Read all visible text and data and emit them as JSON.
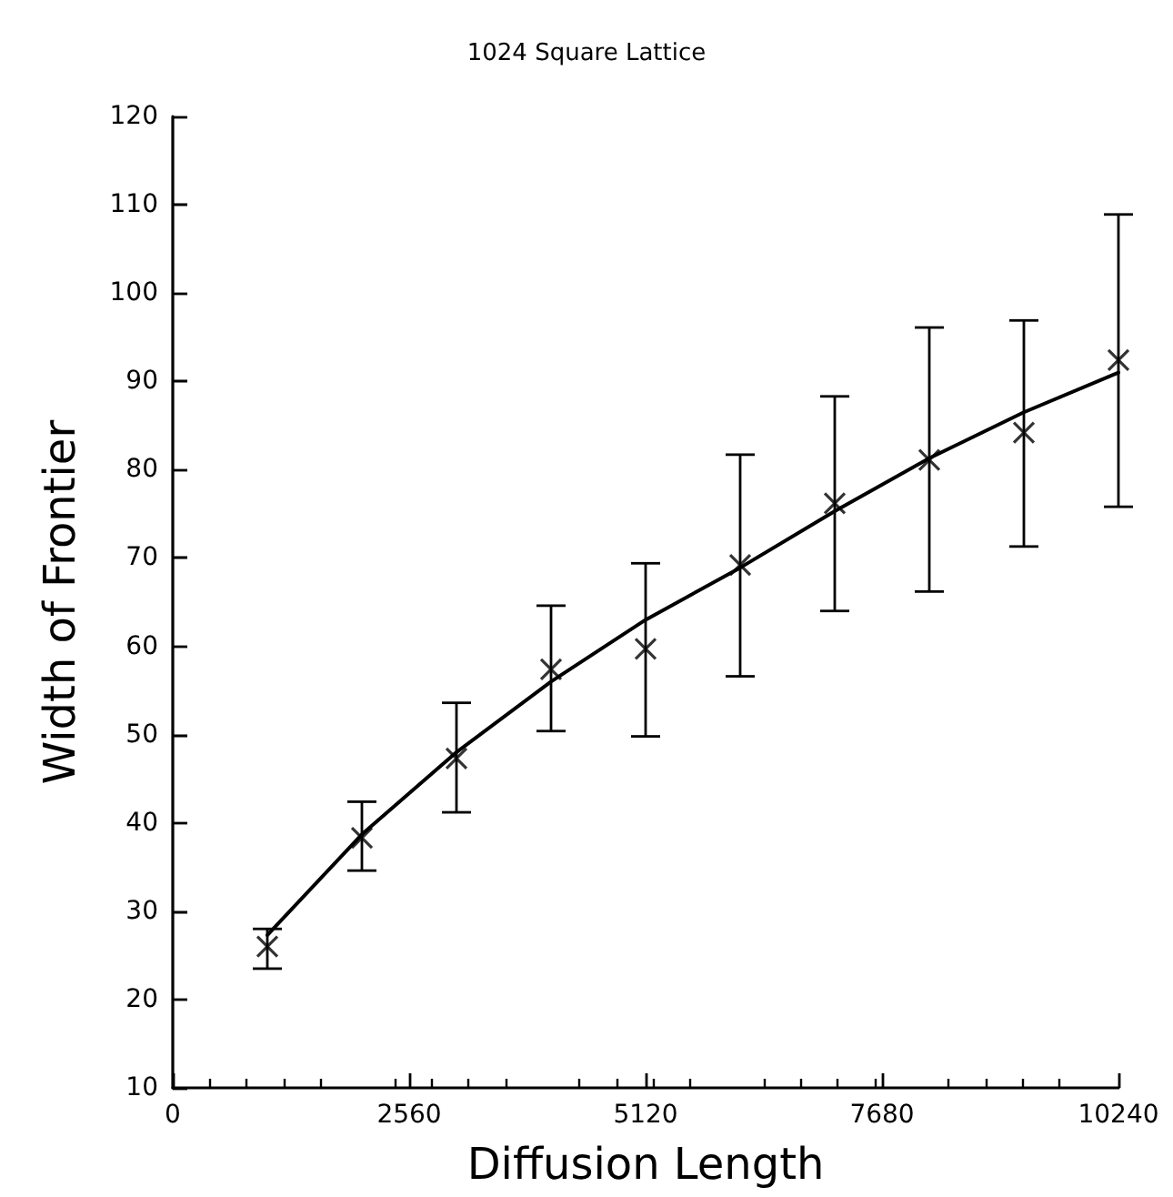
{
  "chart_data": {
    "type": "scatter",
    "title": "1024 Square Lattice",
    "xlabel": "Diffusion Length",
    "ylabel": "Width of Frontier",
    "xlim": [
      0,
      10240
    ],
    "xticks": [
      0,
      2560,
      5120,
      7680,
      10240
    ],
    "ylim": [
      10,
      120
    ],
    "yticks": [
      10,
      20,
      30,
      40,
      50,
      60,
      70,
      80,
      90,
      100,
      110,
      120
    ],
    "grid": false,
    "marker": "cross",
    "series": [
      {
        "color": "#000000",
        "x": [
          1024,
          2048,
          3072,
          4096,
          5120,
          6144,
          7168,
          8192,
          9216,
          10240
        ],
        "values": [
          26.0,
          38.3,
          47.3,
          57.4,
          59.7,
          69.2,
          76.2,
          81.1,
          84.2,
          92.4
        ],
        "errors": [
          [
            23.5,
            28.0
          ],
          [
            34.6,
            42.4
          ],
          [
            41.2,
            53.6
          ],
          [
            50.4,
            64.6
          ],
          [
            49.8,
            69.4
          ],
          [
            56.6,
            81.7
          ],
          [
            64.0,
            88.3
          ],
          [
            66.2,
            96.1
          ],
          [
            71.3,
            96.9
          ],
          [
            75.8,
            108.9
          ]
        ]
      },
      {
        "type": "line",
        "color": "#000000",
        "line_style": "solid",
        "marker": "none",
        "x": [
          1024,
          2048,
          3072,
          4096,
          5120,
          6144,
          7168,
          8192,
          9216,
          10240
        ],
        "values": [
          27.3,
          38.7,
          48.0,
          56.0,
          63.0,
          68.9,
          75.3,
          81.3,
          86.5,
          91.0
        ]
      }
    ]
  }
}
